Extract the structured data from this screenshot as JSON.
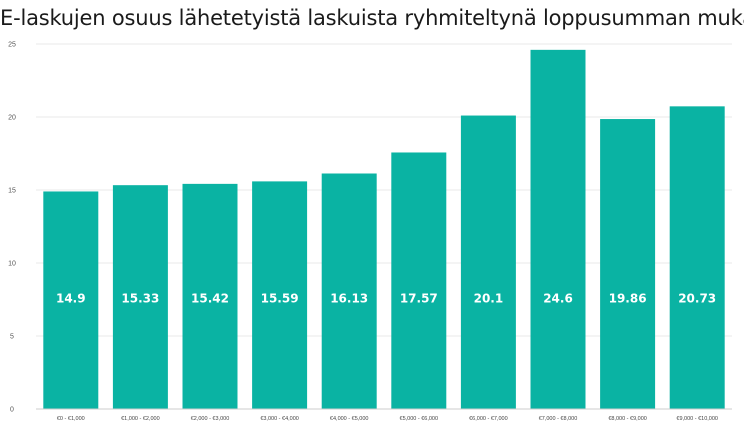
{
  "chart_data": {
    "type": "bar",
    "title": "E-laskujen osuus lähetetyistä laskuista ryhmiteltynä loppusumman mukaan",
    "xlabel": "",
    "ylabel": "",
    "categories": [
      "€0 - €1,000",
      "€1,000 - €2,000",
      "€2,000 - €3,000",
      "€3,000 - €4,000",
      "€4,000 - €5,000",
      "€5,000 - €6,000",
      "€6,000 - €7,000",
      "€7,000 - €8,000",
      "€8,000 - €9,000",
      "€9,000 - €10,000"
    ],
    "values": [
      14.9,
      15.33,
      15.42,
      15.59,
      16.13,
      17.57,
      20.1,
      24.6,
      19.86,
      20.73
    ],
    "data_labels": [
      "14.9",
      "15.33",
      "15.42",
      "15.59",
      "16.13",
      "17.57",
      "20.1",
      "24.6",
      "19.86",
      "20.73"
    ],
    "ylim": [
      0,
      25
    ],
    "yticks": [
      0,
      5,
      10,
      15,
      20,
      25
    ],
    "grid": true,
    "legend": "none",
    "bar_color": "#0ab3a3",
    "grid_color": "#e8e8e8",
    "axis_color": "#cccccc"
  }
}
